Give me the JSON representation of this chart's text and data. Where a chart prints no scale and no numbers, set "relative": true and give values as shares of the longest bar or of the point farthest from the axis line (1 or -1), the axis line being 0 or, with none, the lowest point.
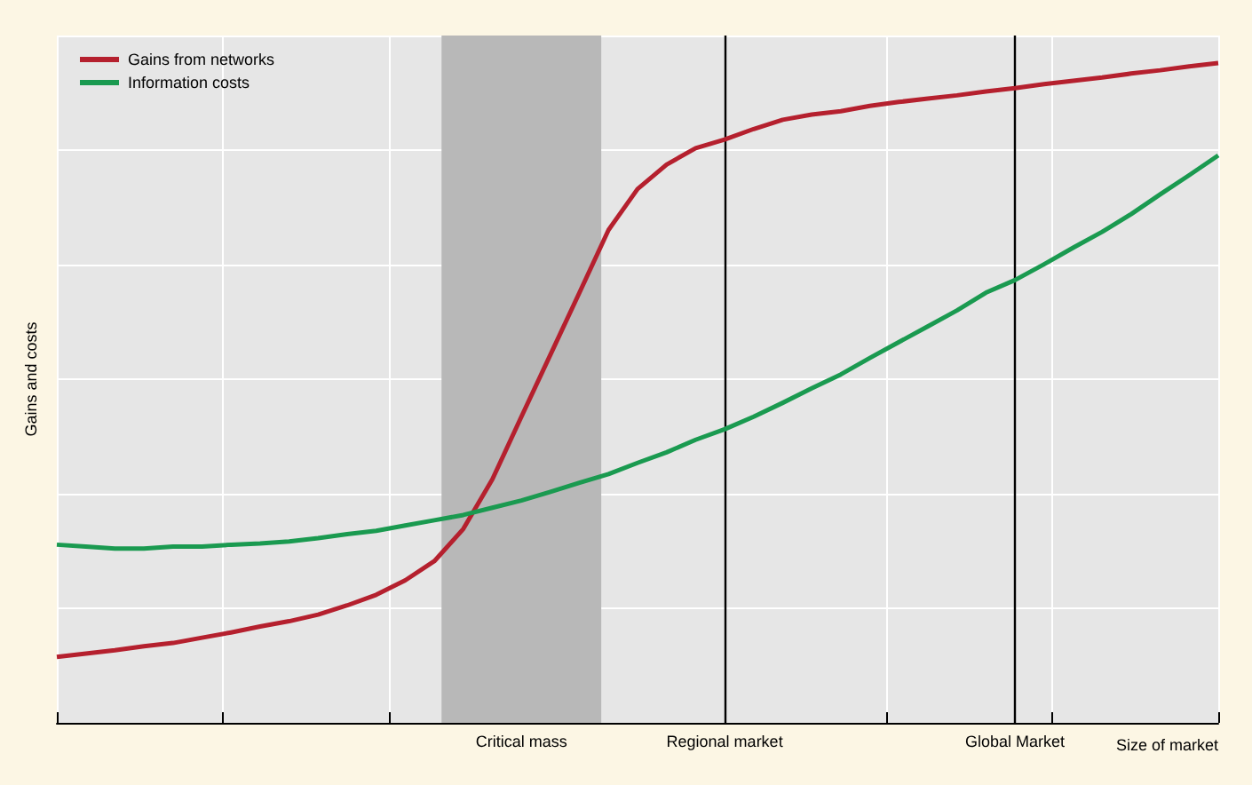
{
  "chart_data": {
    "type": "line",
    "relative": true,
    "xlabel": "Size of market",
    "ylabel": "Gains and costs",
    "categories": [
      null,
      null,
      null,
      null,
      null,
      null,
      null,
      null,
      null,
      null,
      null,
      null,
      null,
      null,
      null,
      null,
      "Critical mass",
      null,
      null,
      null,
      null,
      null,
      null,
      "Regional market",
      null,
      null,
      null,
      null,
      null,
      null,
      null,
      null,
      null,
      "Global Market",
      null,
      null,
      null,
      null,
      null,
      null,
      null
    ],
    "series": [
      {
        "name": "Gains from networks",
        "color": "#b5202e",
        "values": [
          0.1,
          0.105,
          0.11,
          0.116,
          0.121,
          0.129,
          0.137,
          0.146,
          0.154,
          0.164,
          0.178,
          0.194,
          0.216,
          0.245,
          0.294,
          0.369,
          0.464,
          0.558,
          0.652,
          0.747,
          0.809,
          0.846,
          0.871,
          0.884,
          0.9,
          0.914,
          0.922,
          0.927,
          0.935,
          0.941,
          0.946,
          0.951,
          0.957,
          0.962,
          0.968,
          0.973,
          0.978,
          0.984,
          0.989,
          0.995,
          1
        ]
      },
      {
        "name": "Information costs",
        "color": "#1a9a50",
        "values": [
          0.27,
          0.267,
          0.264,
          0.264,
          0.267,
          0.267,
          0.27,
          0.272,
          0.275,
          0.28,
          0.286,
          0.291,
          0.299,
          0.307,
          0.315,
          0.326,
          0.337,
          0.35,
          0.364,
          0.377,
          0.394,
          0.41,
          0.429,
          0.445,
          0.464,
          0.485,
          0.507,
          0.528,
          0.553,
          0.577,
          0.601,
          0.625,
          0.652,
          0.671,
          0.695,
          0.72,
          0.744,
          0.771,
          0.801,
          0.83,
          0.86
        ]
      }
    ],
    "ref_lines": [
      {
        "axis": "x",
        "value": "Regional market",
        "color": "#000000"
      },
      {
        "axis": "x",
        "value": "Global Market",
        "color": "#000000"
      }
    ],
    "grid": true,
    "legend": "top left",
    "marker": "none",
    "line_style": "solid"
  }
}
